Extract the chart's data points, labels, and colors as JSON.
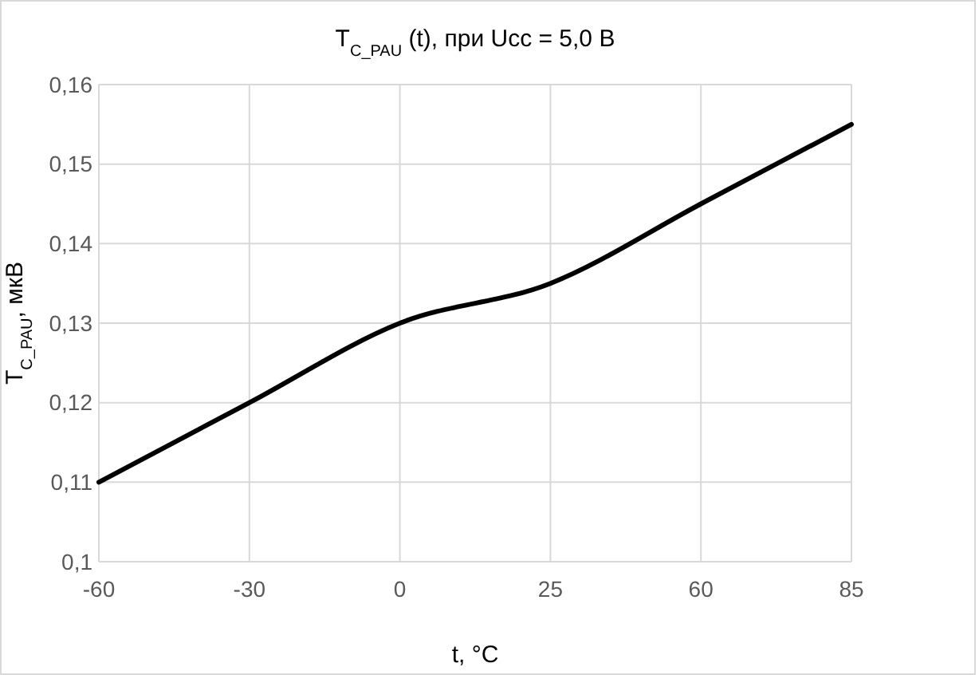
{
  "chart_data": {
    "type": "line",
    "title": "T$_{C_PAU}$ (t), при Ucc = 5,0 В",
    "xlabel": "t, °C",
    "ylabel": "T$_{C_PAU}$, мкВ",
    "categories": [
      "-60",
      "-30",
      "0",
      "25",
      "60",
      "85"
    ],
    "series": [
      {
        "color": "#000000",
        "values": [
          0.11,
          0.12,
          0.13,
          0.135,
          0.145,
          0.155
        ]
      }
    ],
    "ylim": [
      0.1,
      0.16
    ],
    "yticks": [
      {
        "value": 0.1,
        "label": "0,1"
      },
      {
        "value": 0.11,
        "label": "0,11"
      },
      {
        "value": 0.12,
        "label": "0,12"
      },
      {
        "value": 0.13,
        "label": "0,13"
      },
      {
        "value": 0.14,
        "label": "0,14"
      },
      {
        "value": 0.15,
        "label": "0,15"
      },
      {
        "value": 0.16,
        "label": "0,16"
      }
    ],
    "grid": true,
    "marker": "none",
    "line_style": "solid"
  }
}
